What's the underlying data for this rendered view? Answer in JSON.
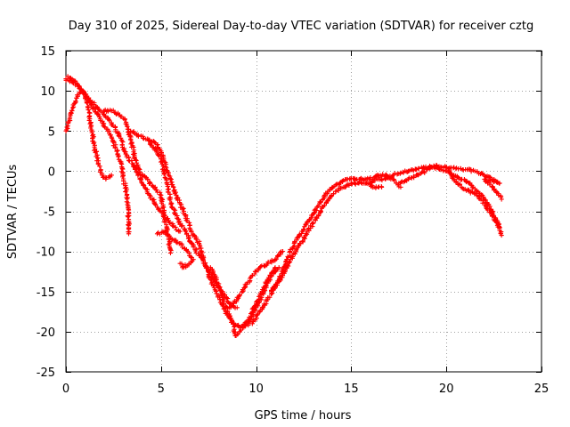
{
  "chart_data": {
    "type": "scatter",
    "title": "Day 310 of 2025, Sidereal Day-to-day VTEC variation (SDTVAR) for receiver cztg",
    "xlabel": "GPS time / hours",
    "ylabel": "SDTVAR / TECUs",
    "xlim": [
      0,
      25
    ],
    "ylim": [
      -25,
      15
    ],
    "xticks": [
      0,
      5,
      10,
      15,
      20,
      25
    ],
    "yticks": [
      -25,
      -20,
      -15,
      -10,
      -5,
      0,
      5,
      10,
      15
    ],
    "xtick_labels": [
      "0",
      "5",
      "10",
      "15",
      "20",
      "25"
    ],
    "ytick_labels": [
      "-25",
      "-20",
      "-15",
      "-10",
      "-5",
      "0",
      "5",
      "10",
      "15"
    ],
    "grid": true,
    "marker": "+",
    "color": "#ff0000",
    "series": [
      {
        "name": "track-1",
        "points": [
          [
            0.0,
            11.5
          ],
          [
            0.4,
            11.0
          ],
          [
            0.8,
            10.2
          ],
          [
            1.2,
            9.0
          ],
          [
            1.6,
            8.0
          ],
          [
            2.0,
            7.0
          ],
          [
            2.4,
            6.0
          ],
          [
            2.8,
            4.5
          ],
          [
            3.2,
            2.0
          ],
          [
            3.6,
            0.5
          ],
          [
            4.0,
            -1.5
          ],
          [
            4.4,
            -3.0
          ],
          [
            4.8,
            -4.5
          ],
          [
            5.2,
            -5.5
          ],
          [
            5.6,
            -6.8
          ],
          [
            6.0,
            -7.5
          ]
        ]
      },
      {
        "name": "track-2",
        "points": [
          [
            0.1,
            11.8
          ],
          [
            0.5,
            11.2
          ],
          [
            1.0,
            9.5
          ],
          [
            1.4,
            8.0
          ],
          [
            1.8,
            6.5
          ],
          [
            2.2,
            5.0
          ],
          [
            2.6,
            3.0
          ],
          [
            2.9,
            1.0
          ],
          [
            3.0,
            -0.5
          ],
          [
            3.2,
            -3.0
          ],
          [
            3.3,
            -6.0
          ],
          [
            3.3,
            -7.8
          ]
        ]
      },
      {
        "name": "track-3",
        "points": [
          [
            0.0,
            5.0
          ],
          [
            0.2,
            6.5
          ],
          [
            0.4,
            8.0
          ],
          [
            0.6,
            9.5
          ],
          [
            0.9,
            10.0
          ],
          [
            1.1,
            8.5
          ],
          [
            1.3,
            6.0
          ],
          [
            1.5,
            3.0
          ],
          [
            1.7,
            1.0
          ],
          [
            1.9,
            -0.5
          ],
          [
            2.1,
            -1.0
          ],
          [
            2.4,
            -0.5
          ]
        ]
      },
      {
        "name": "track-4",
        "points": [
          [
            2.0,
            7.5
          ],
          [
            2.4,
            7.5
          ],
          [
            2.8,
            7.0
          ],
          [
            3.1,
            6.5
          ],
          [
            3.4,
            4.0
          ],
          [
            3.6,
            2.0
          ],
          [
            3.8,
            0.5
          ],
          [
            4.0,
            -0.5
          ],
          [
            4.3,
            -1.0
          ],
          [
            4.6,
            -2.0
          ],
          [
            5.0,
            -3.0
          ],
          [
            5.2,
            -6.0
          ],
          [
            5.4,
            -8.5
          ],
          [
            5.5,
            -10.2
          ]
        ]
      },
      {
        "name": "track-5",
        "points": [
          [
            3.4,
            5.0
          ],
          [
            3.8,
            4.5
          ],
          [
            4.2,
            4.0
          ],
          [
            4.6,
            3.0
          ],
          [
            5.0,
            1.5
          ],
          [
            5.3,
            -1.5
          ],
          [
            5.6,
            -4.5
          ],
          [
            6.0,
            -6.5
          ],
          [
            6.3,
            -7.5
          ],
          [
            6.6,
            -9.0
          ],
          [
            7.0,
            -10.5
          ],
          [
            7.4,
            -12.0
          ],
          [
            7.8,
            -13.5
          ],
          [
            8.2,
            -15.0
          ],
          [
            8.6,
            -16.5
          ],
          [
            9.0,
            -17.0
          ]
        ]
      },
      {
        "name": "track-6",
        "points": [
          [
            4.3,
            4.0
          ],
          [
            4.7,
            3.5
          ],
          [
            5.0,
            2.5
          ],
          [
            5.4,
            -0.5
          ],
          [
            5.8,
            -3.0
          ],
          [
            6.2,
            -5.0
          ],
          [
            6.6,
            -7.5
          ],
          [
            7.0,
            -9.0
          ],
          [
            7.3,
            -11.5
          ],
          [
            7.6,
            -13.5
          ],
          [
            8.0,
            -15.5
          ],
          [
            8.4,
            -17.5
          ],
          [
            8.8,
            -19.0
          ],
          [
            9.2,
            -19.5
          ],
          [
            9.6,
            -19.0
          ],
          [
            10.0,
            -17.0
          ],
          [
            10.4,
            -15.0
          ],
          [
            10.8,
            -13.0
          ],
          [
            11.2,
            -12.0
          ]
        ]
      },
      {
        "name": "track-7",
        "points": [
          [
            4.8,
            -7.8
          ],
          [
            5.2,
            -7.5
          ],
          [
            5.6,
            -8.5
          ],
          [
            6.0,
            -9.0
          ],
          [
            6.4,
            -10.0
          ],
          [
            6.7,
            -11.0
          ],
          [
            6.2,
            -12.0
          ],
          [
            6.0,
            -11.5
          ]
        ]
      },
      {
        "name": "track-8",
        "points": [
          [
            7.6,
            -12.0
          ],
          [
            7.9,
            -13.5
          ],
          [
            8.2,
            -15.5
          ],
          [
            8.5,
            -17.5
          ],
          [
            8.8,
            -19.0
          ],
          [
            8.9,
            -20.5
          ],
          [
            9.2,
            -19.8
          ],
          [
            9.6,
            -18.5
          ],
          [
            10.0,
            -16.5
          ],
          [
            10.3,
            -15.0
          ],
          [
            10.6,
            -13.5
          ],
          [
            11.0,
            -12.0
          ]
        ]
      },
      {
        "name": "track-9",
        "points": [
          [
            8.6,
            -17.0
          ],
          [
            9.0,
            -16.0
          ],
          [
            9.4,
            -14.5
          ],
          [
            9.8,
            -13.0
          ],
          [
            10.2,
            -12.0
          ],
          [
            10.6,
            -11.5
          ],
          [
            11.0,
            -11.0
          ],
          [
            11.4,
            -10.0
          ]
        ]
      },
      {
        "name": "track-10",
        "points": [
          [
            9.8,
            -19.0
          ],
          [
            10.2,
            -17.5
          ],
          [
            10.6,
            -16.0
          ],
          [
            11.0,
            -14.5
          ],
          [
            11.4,
            -13.0
          ],
          [
            11.8,
            -11.0
          ],
          [
            12.2,
            -9.5
          ],
          [
            12.6,
            -8.0
          ],
          [
            13.0,
            -6.5
          ],
          [
            13.4,
            -5.0
          ],
          [
            13.8,
            -3.5
          ],
          [
            14.2,
            -2.5
          ],
          [
            14.6,
            -2.0
          ],
          [
            15.0,
            -1.5
          ],
          [
            15.4,
            -1.5
          ],
          [
            15.8,
            -1.5
          ],
          [
            16.2,
            -2.0
          ],
          [
            16.6,
            -2.0
          ]
        ]
      },
      {
        "name": "track-11",
        "points": [
          [
            10.8,
            -15.0
          ],
          [
            11.2,
            -13.5
          ],
          [
            11.6,
            -11.0
          ],
          [
            12.0,
            -9.0
          ],
          [
            12.4,
            -7.5
          ],
          [
            12.8,
            -6.0
          ],
          [
            13.2,
            -4.5
          ],
          [
            13.6,
            -3.0
          ],
          [
            14.0,
            -2.0
          ],
          [
            14.4,
            -1.5
          ],
          [
            14.8,
            -1.0
          ],
          [
            15.2,
            -1.0
          ],
          [
            15.6,
            -1.0
          ],
          [
            16.0,
            -1.0
          ],
          [
            16.4,
            -0.5
          ],
          [
            16.8,
            -0.5
          ],
          [
            17.2,
            -1.0
          ],
          [
            17.6,
            -2.0
          ]
        ]
      },
      {
        "name": "track-12",
        "points": [
          [
            16.0,
            -1.5
          ],
          [
            16.4,
            -1.0
          ],
          [
            16.8,
            -1.0
          ],
          [
            17.2,
            -0.5
          ],
          [
            17.6,
            -0.2
          ],
          [
            18.0,
            0.0
          ],
          [
            18.4,
            0.2
          ],
          [
            18.8,
            0.5
          ],
          [
            19.2,
            0.5
          ],
          [
            19.6,
            0.3
          ],
          [
            20.0,
            0.0
          ],
          [
            20.4,
            -0.5
          ],
          [
            20.8,
            -1.0
          ],
          [
            21.2,
            -1.5
          ],
          [
            21.6,
            -2.5
          ],
          [
            22.0,
            -3.5
          ],
          [
            22.4,
            -5.0
          ],
          [
            22.7,
            -6.5
          ],
          [
            22.9,
            -8.0
          ]
        ]
      },
      {
        "name": "track-13",
        "points": [
          [
            17.5,
            -1.5
          ],
          [
            18.0,
            -1.0
          ],
          [
            18.5,
            -0.5
          ],
          [
            19.0,
            0.2
          ],
          [
            19.5,
            0.7
          ],
          [
            20.0,
            0.5
          ],
          [
            20.4,
            -1.0
          ],
          [
            20.8,
            -2.0
          ],
          [
            21.2,
            -2.5
          ],
          [
            21.6,
            -3.0
          ],
          [
            22.0,
            -4.0
          ],
          [
            22.4,
            -5.5
          ],
          [
            22.8,
            -7.0
          ]
        ]
      },
      {
        "name": "track-14",
        "points": [
          [
            20.0,
            0.5
          ],
          [
            20.5,
            0.3
          ],
          [
            21.0,
            0.2
          ],
          [
            21.5,
            0.0
          ],
          [
            22.0,
            -0.5
          ],
          [
            22.4,
            -1.0
          ],
          [
            22.8,
            -1.5
          ],
          [
            22.0,
            -1.0
          ],
          [
            22.6,
            -2.5
          ],
          [
            22.9,
            -3.5
          ]
        ]
      }
    ]
  }
}
